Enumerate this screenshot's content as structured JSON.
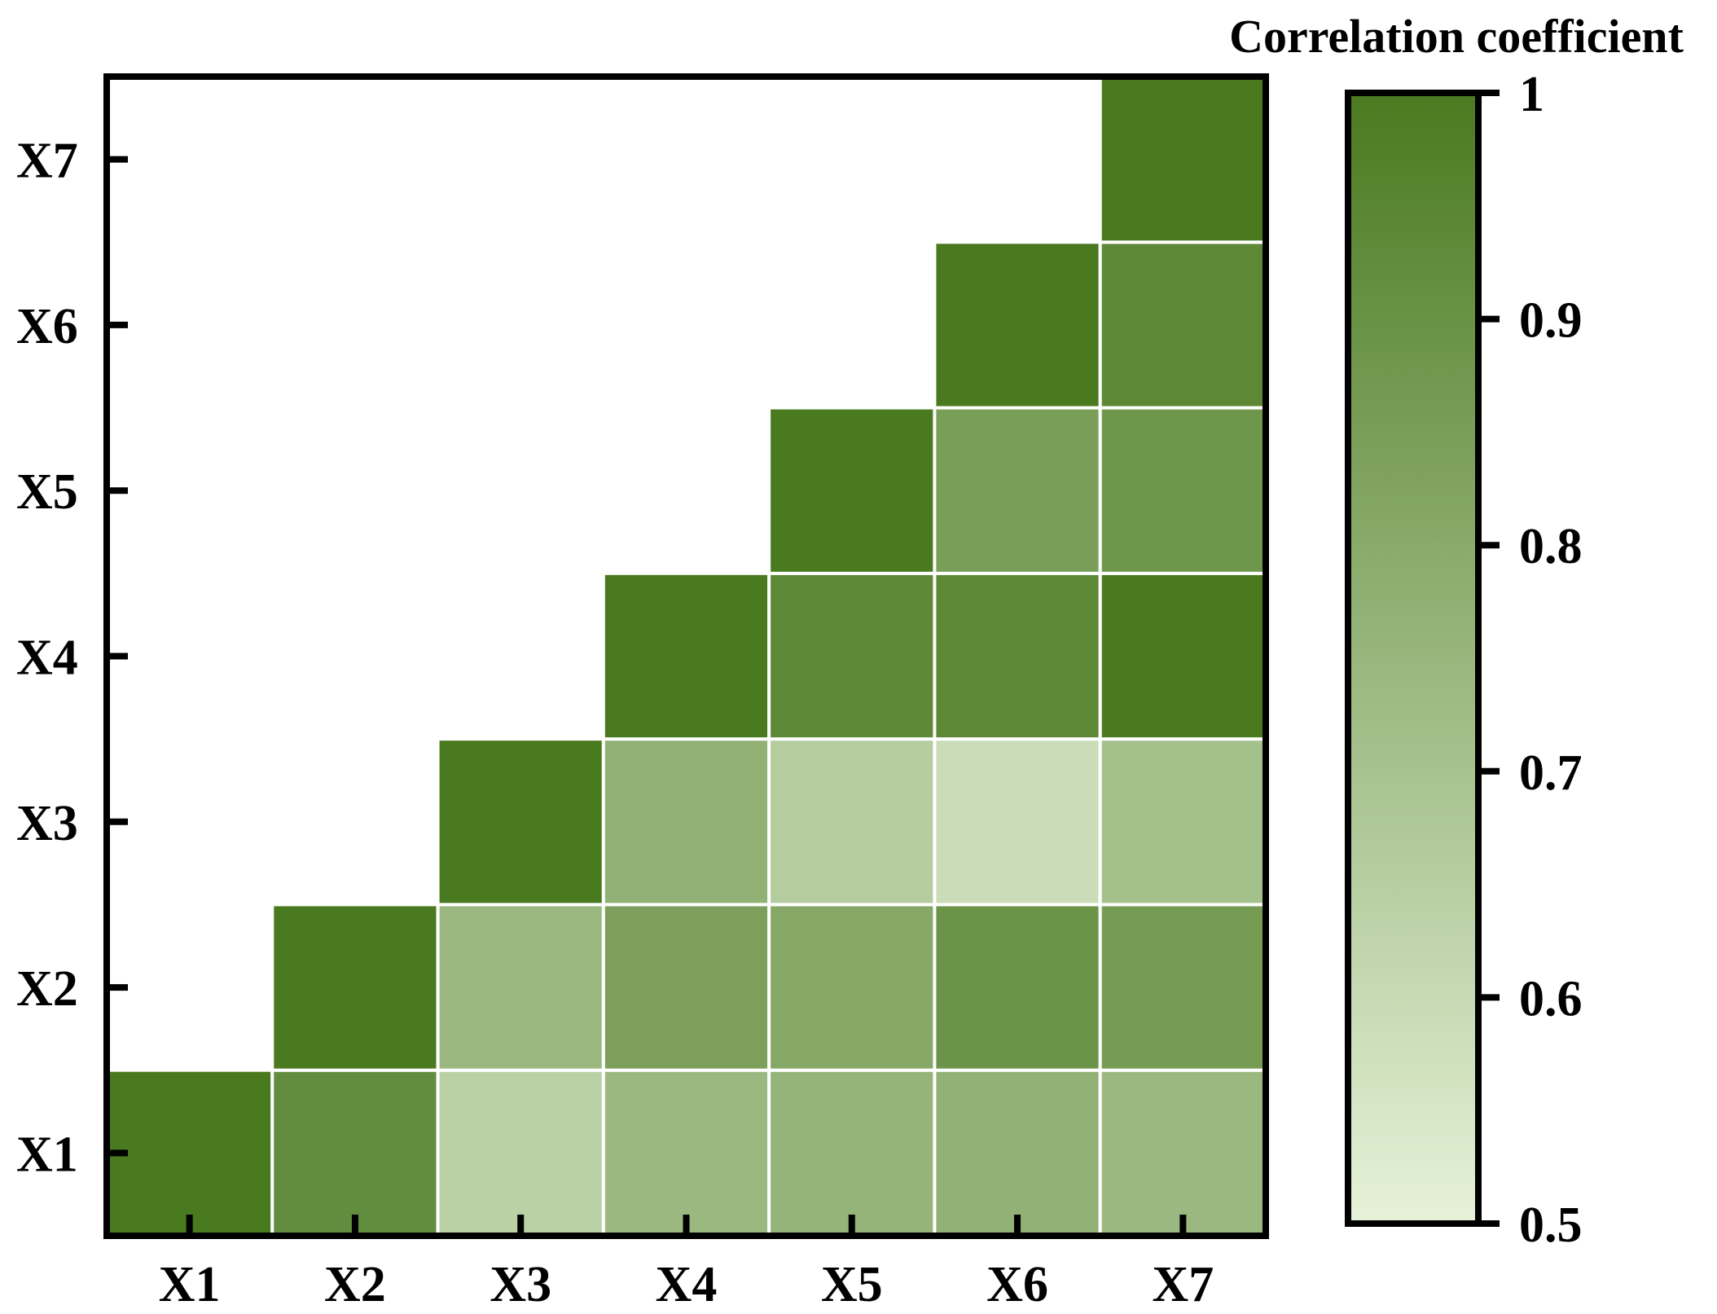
{
  "chart_data": {
    "type": "heatmap",
    "title": "",
    "x_categories": [
      "X1",
      "X2",
      "X3",
      "X4",
      "X5",
      "X6",
      "X7"
    ],
    "y_categories": [
      "X1",
      "X2",
      "X3",
      "X4",
      "X5",
      "X6",
      "X7"
    ],
    "matrix": [
      [
        1.0,
        null,
        null,
        null,
        null,
        null,
        null
      ],
      [
        0.92,
        1.0,
        null,
        null,
        null,
        null,
        null
      ],
      [
        0.64,
        0.74,
        1.0,
        null,
        null,
        null,
        null
      ],
      [
        0.74,
        0.84,
        0.77,
        1.0,
        null,
        null,
        null
      ],
      [
        0.76,
        0.81,
        0.66,
        0.94,
        1.0,
        null,
        null
      ],
      [
        0.77,
        0.89,
        0.59,
        0.94,
        0.85,
        1.0,
        null
      ],
      [
        0.74,
        0.86,
        0.71,
        1.0,
        0.88,
        0.94,
        1.0
      ]
    ],
    "matrix_orientation": "rows follow x_categories (X1..X7), columns follow y_categories (X1..X7); only the lower-left triangle (x >= y) is drawn",
    "colorbar": {
      "title": "Correlation coefficient",
      "min": 0.5,
      "max": 1,
      "ticks": [
        "0.5",
        "0.6",
        "0.7",
        "0.8",
        "0.9",
        "1"
      ],
      "color_low": "#e6f2d9",
      "color_high": "#4a7a20"
    },
    "grid": false,
    "legend": "colorbar-right"
  }
}
